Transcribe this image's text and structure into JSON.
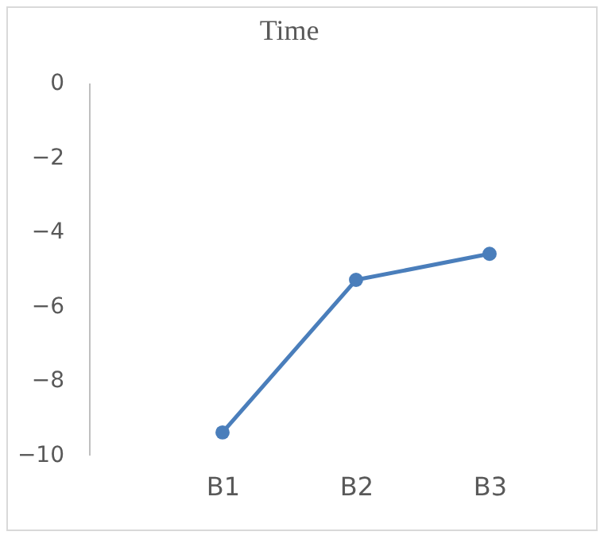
{
  "chart_data": {
    "type": "line",
    "title": "Time",
    "categories": [
      null,
      "B1",
      "B2",
      "B3"
    ],
    "values": [
      null,
      -9.4,
      -5.3,
      -4.6
    ],
    "color": "#4a7ebb",
    "marker": "circle",
    "line_style": "solid",
    "ylim": [
      -10,
      0
    ],
    "yticks": [
      -10,
      -8,
      -6,
      -4,
      -2,
      0
    ],
    "grid": false,
    "legend": false
  }
}
